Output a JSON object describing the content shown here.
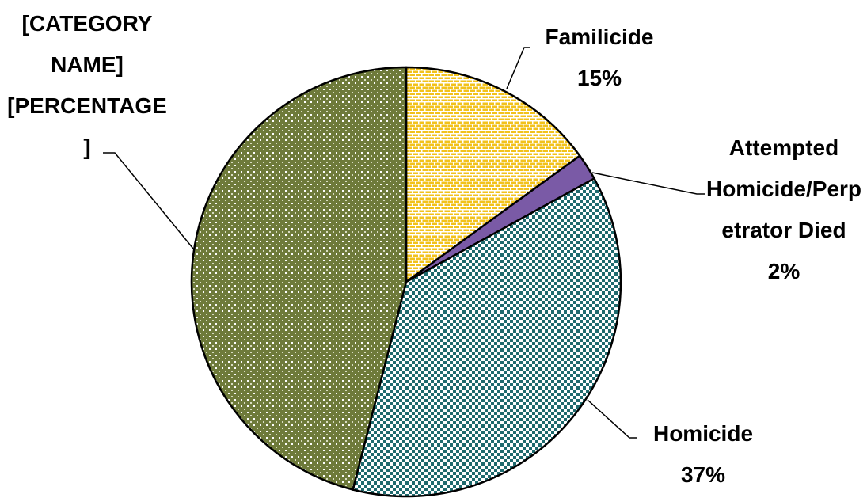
{
  "chart_data": {
    "type": "pie",
    "categories": [
      "Familicide",
      "Attempted Homicide/Perpetrator Died",
      "Homicide",
      "[CATEGORY NAME]"
    ],
    "values": [
      15,
      2,
      37,
      46
    ],
    "value_labels": [
      "15%",
      "2%",
      "37%",
      "[PERCENTAGE]"
    ],
    "colors": [
      "#f2c21b",
      "#7a5aa6",
      "#1f6a6e",
      "#6e7a3a"
    ]
  }
}
